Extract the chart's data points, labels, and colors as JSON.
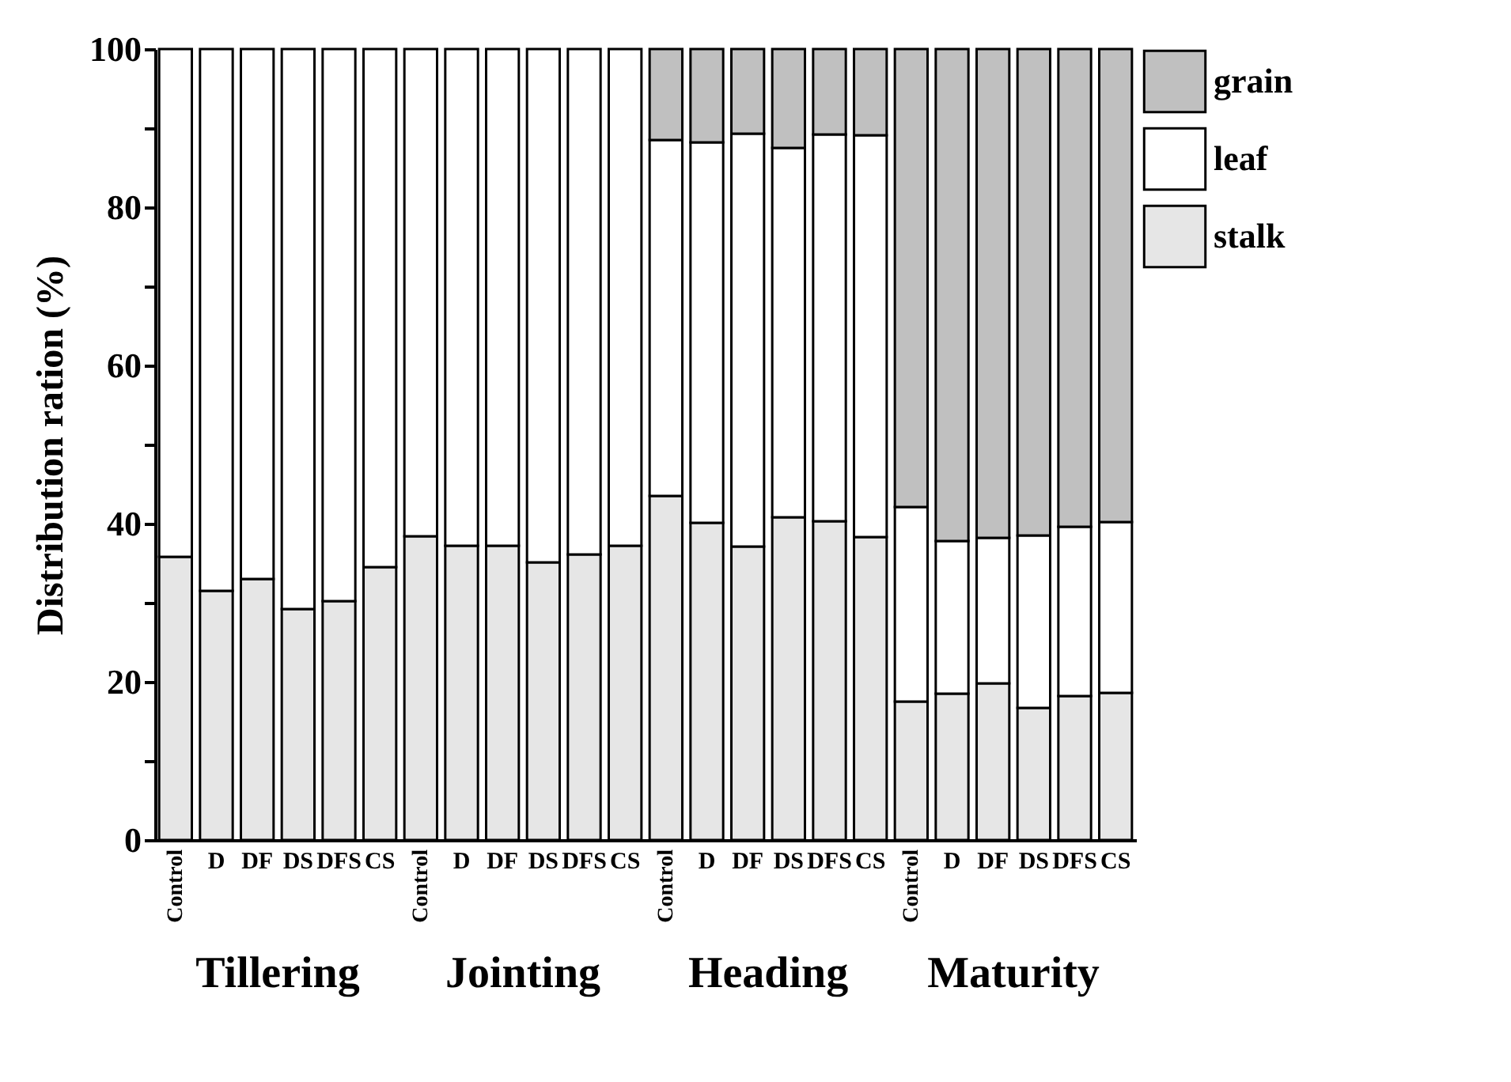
{
  "chart_data": {
    "type": "bar",
    "stacked": true,
    "ylabel": "Distribution ration (%)",
    "categories": [
      "Control",
      "D",
      "DF",
      "DS",
      "DFS",
      "CS",
      "Control",
      "D",
      "DF",
      "DS",
      "DFS",
      "CS",
      "Control",
      "D",
      "DF",
      "DS",
      "DFS",
      "CS",
      "Control",
      "D",
      "DF",
      "DS",
      "DFS",
      "CS"
    ],
    "annotations": [
      "Tillering",
      "Jointing",
      "Heading",
      "Maturity"
    ],
    "series": [
      {
        "name": "stalk",
        "color": "#e6e6e6",
        "values": [
          35.8,
          31.5,
          33,
          29.2,
          30.2,
          34.5,
          38.4,
          37.2,
          37.2,
          35.1,
          36.1,
          37.2,
          43.5,
          40.1,
          37.1,
          40.8,
          40.3,
          38.3,
          17.5,
          18.5,
          19.8,
          16.7,
          18.2,
          18.6
        ]
      },
      {
        "name": "leaf",
        "color": "#ffffff",
        "values": [
          64.2,
          68.5,
          67,
          70.8,
          69.8,
          65.5,
          61.6,
          62.8,
          62.8,
          64.9,
          63.9,
          62.8,
          45,
          48.1,
          52.2,
          46.7,
          48.9,
          50.8,
          24.6,
          19.3,
          18.4,
          21.8,
          21.4,
          21.6
        ]
      },
      {
        "name": "grain",
        "color": "#c0c0c0",
        "values": [
          null,
          null,
          null,
          null,
          null,
          null,
          null,
          null,
          null,
          null,
          null,
          null,
          11.5,
          11.8,
          10.7,
          12.5,
          10.8,
          10.9,
          57.9,
          62.2,
          61.8,
          61.5,
          60.4,
          59.8
        ]
      }
    ],
    "ylim": [
      0,
      100
    ],
    "yticks": [
      0,
      {
        "value": 10,
        "label": null
      },
      20,
      {
        "value": 30,
        "label": null
      },
      40,
      {
        "value": 50,
        "label": null
      },
      60,
      {
        "value": 70,
        "label": null
      },
      80,
      {
        "value": 90,
        "label": null
      },
      100
    ],
    "legend": "top right",
    "grid": false
  }
}
